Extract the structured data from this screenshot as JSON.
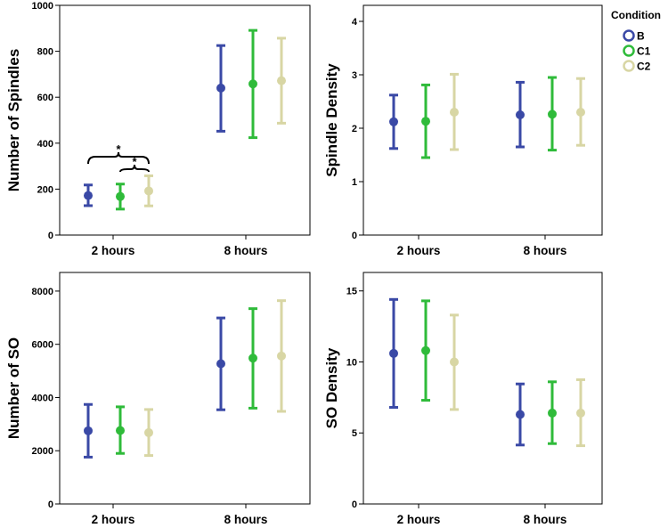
{
  "legend": {
    "title": "Condition",
    "items": [
      {
        "label": "B",
        "color": "#3a49a6"
      },
      {
        "label": "C1",
        "color": "#2fbb3a"
      },
      {
        "label": "C2",
        "color": "#d8d6a4"
      }
    ]
  },
  "chart_data": [
    {
      "type": "errorbar",
      "ylabel": "Number of Spindles",
      "categories": [
        "2 hours",
        "8 hours"
      ],
      "ylim": [
        0,
        1000
      ],
      "yticks": [
        0,
        200,
        400,
        600,
        800,
        1000
      ],
      "grid": false,
      "series": [
        {
          "name": "B",
          "mean": [
            172,
            640
          ],
          "lower": [
            128,
            452
          ],
          "upper": [
            218,
            825
          ]
        },
        {
          "name": "C1",
          "mean": [
            168,
            658
          ],
          "lower": [
            113,
            424
          ],
          "upper": [
            222,
            891
          ]
        },
        {
          "name": "C2",
          "mean": [
            192,
            672
          ],
          "lower": [
            127,
            487
          ],
          "upper": [
            258,
            857
          ]
        }
      ],
      "annotations": [
        {
          "text": "*",
          "from": {
            "category": "2 hours",
            "series": "B"
          },
          "to": {
            "category": "2 hours",
            "series": "C2"
          }
        },
        {
          "text": "*",
          "from": {
            "category": "2 hours",
            "series": "C1"
          },
          "to": {
            "category": "2 hours",
            "series": "C2"
          }
        }
      ]
    },
    {
      "type": "errorbar",
      "ylabel": "Spindle Density",
      "categories": [
        "2 hours",
        "8 hours"
      ],
      "ylim": [
        0,
        4.3
      ],
      "yticks": [
        0,
        1,
        2,
        3,
        4
      ],
      "grid": false,
      "series": [
        {
          "name": "B",
          "mean": [
            2.12,
            2.25
          ],
          "lower": [
            1.62,
            1.65
          ],
          "upper": [
            2.62,
            2.86
          ]
        },
        {
          "name": "C1",
          "mean": [
            2.13,
            2.26
          ],
          "lower": [
            1.45,
            1.59
          ],
          "upper": [
            2.81,
            2.95
          ]
        },
        {
          "name": "C2",
          "mean": [
            2.3,
            2.3
          ],
          "lower": [
            1.6,
            1.68
          ],
          "upper": [
            3.01,
            2.93
          ]
        }
      ]
    },
    {
      "type": "errorbar",
      "ylabel": "Number of SO",
      "categories": [
        "2 hours",
        "8 hours"
      ],
      "ylim": [
        0,
        8700
      ],
      "yticks": [
        0,
        2000,
        4000,
        6000,
        8000
      ],
      "grid": false,
      "series": [
        {
          "name": "B",
          "mean": [
            2750,
            5270
          ],
          "lower": [
            1760,
            3540
          ],
          "upper": [
            3740,
            6990
          ]
        },
        {
          "name": "C1",
          "mean": [
            2760,
            5480
          ],
          "lower": [
            1900,
            3600
          ],
          "upper": [
            3650,
            7340
          ]
        },
        {
          "name": "C2",
          "mean": [
            2680,
            5560
          ],
          "lower": [
            1820,
            3480
          ],
          "upper": [
            3550,
            7640
          ]
        }
      ]
    },
    {
      "type": "errorbar",
      "ylabel": "SO Density",
      "categories": [
        "2 hours",
        "8 hours"
      ],
      "ylim": [
        0,
        16.3
      ],
      "yticks": [
        0,
        5,
        10,
        15
      ],
      "grid": false,
      "series": [
        {
          "name": "B",
          "mean": [
            10.6,
            6.3
          ],
          "lower": [
            6.8,
            4.15
          ],
          "upper": [
            14.4,
            8.45
          ]
        },
        {
          "name": "C1",
          "mean": [
            10.8,
            6.4
          ],
          "lower": [
            7.3,
            4.25
          ],
          "upper": [
            14.3,
            8.6
          ]
        },
        {
          "name": "C2",
          "mean": [
            10.0,
            6.4
          ],
          "lower": [
            6.65,
            4.1
          ],
          "upper": [
            13.3,
            8.75
          ]
        }
      ]
    }
  ]
}
